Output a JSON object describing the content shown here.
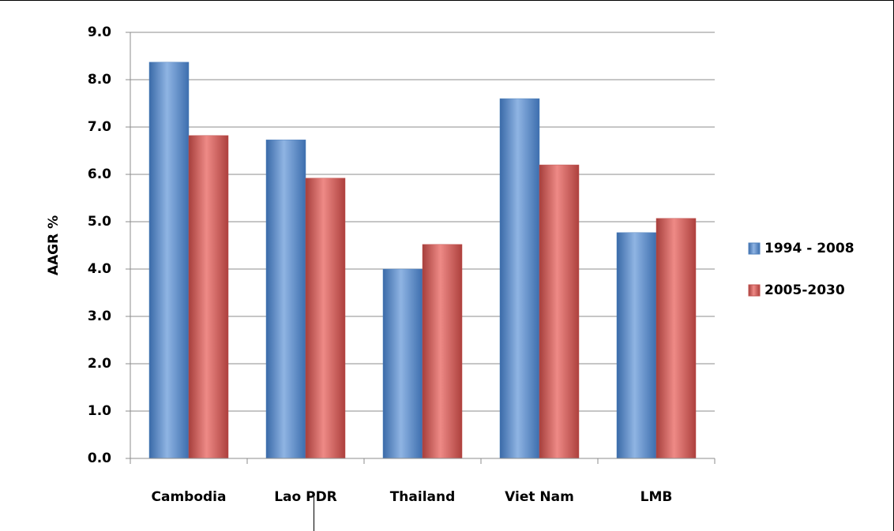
{
  "chart_data": {
    "type": "bar",
    "y_label": "AAGR %",
    "categories": [
      "Cambodia",
      "Lao PDR",
      "Thailand",
      "Viet Nam",
      "LMB"
    ],
    "series": [
      {
        "name": "1994 - 2008",
        "color": "#4f81bd",
        "values": [
          8.37,
          6.73,
          4.0,
          7.6,
          4.77
        ]
      },
      {
        "name": "2005-2030",
        "color": "#c0504d",
        "values": [
          6.82,
          5.92,
          4.52,
          6.2,
          5.07
        ]
      }
    ],
    "ylim": [
      0,
      9
    ],
    "yticks": [
      {
        "value": 0,
        "label": "0.0"
      },
      {
        "value": 1,
        "label": "1.0"
      },
      {
        "value": 2,
        "label": "2.0"
      },
      {
        "value": 3,
        "label": "3.0"
      },
      {
        "value": 4,
        "label": "4.0"
      },
      {
        "value": 5,
        "label": "5.0"
      },
      {
        "value": 6,
        "label": "6.0"
      },
      {
        "value": 7,
        "label": "7.0"
      },
      {
        "value": 8,
        "label": "8.0"
      },
      {
        "value": 9,
        "label": "9.0"
      }
    ],
    "grid": true,
    "legend": "right"
  }
}
